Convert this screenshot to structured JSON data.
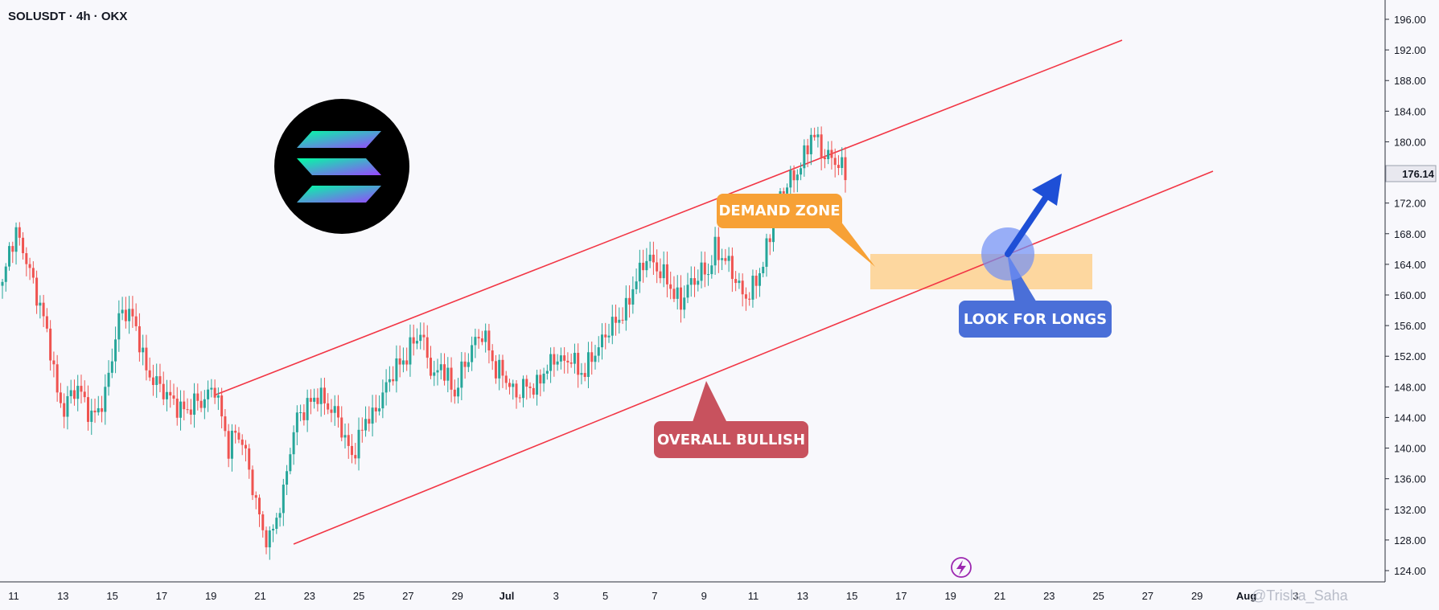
{
  "chart_data": {
    "type": "candlestick",
    "title": "SOLUSDT · 4h · OKX",
    "symbol": "SOLUSDT",
    "interval": "4h",
    "exchange": "OKX",
    "last_price": "176.14",
    "ylim": [
      122.5,
      198
    ],
    "y_ticks": [
      "196.00",
      "192.00",
      "188.00",
      "184.00",
      "180.00",
      "176.00",
      "172.00",
      "168.00",
      "164.00",
      "160.00",
      "156.00",
      "152.00",
      "148.00",
      "144.00",
      "140.00",
      "136.00",
      "132.00",
      "128.00",
      "124.00"
    ],
    "x_ticks": [
      "11",
      "13",
      "15",
      "17",
      "19",
      "21",
      "23",
      "25",
      "27",
      "29",
      "Jul",
      "3",
      "5",
      "7",
      "9",
      "11",
      "13",
      "15",
      "17",
      "19",
      "21",
      "23",
      "25",
      "27",
      "29",
      "Aug",
      "3"
    ],
    "x_tick_bold": [
      "Jul",
      "Aug"
    ],
    "waypoints": [
      [
        0,
        161
      ],
      [
        2,
        166
      ],
      [
        4,
        168
      ],
      [
        6,
        166
      ],
      [
        8,
        163
      ],
      [
        10,
        160
      ],
      [
        12,
        157
      ],
      [
        14,
        153
      ],
      [
        16,
        147
      ],
      [
        18,
        145
      ],
      [
        20,
        147
      ],
      [
        22,
        148
      ],
      [
        24,
        146
      ],
      [
        26,
        144
      ],
      [
        28,
        145
      ],
      [
        30,
        147
      ],
      [
        32,
        152
      ],
      [
        34,
        157
      ],
      [
        36,
        158
      ],
      [
        38,
        157
      ],
      [
        40,
        154
      ],
      [
        42,
        150
      ],
      [
        44,
        149
      ],
      [
        46,
        148
      ],
      [
        48,
        147
      ],
      [
        50,
        146
      ],
      [
        52,
        145
      ],
      [
        54,
        145
      ],
      [
        56,
        146
      ],
      [
        58,
        146
      ],
      [
        60,
        147
      ],
      [
        62,
        148
      ],
      [
        64,
        144
      ],
      [
        66,
        140
      ],
      [
        68,
        142
      ],
      [
        70,
        141
      ],
      [
        72,
        137
      ],
      [
        74,
        133
      ],
      [
        76,
        129
      ],
      [
        78,
        128
      ],
      [
        80,
        131
      ],
      [
        82,
        134
      ],
      [
        84,
        140
      ],
      [
        86,
        144
      ],
      [
        88,
        145
      ],
      [
        90,
        146
      ],
      [
        92,
        147
      ],
      [
        94,
        146
      ],
      [
        96,
        145
      ],
      [
        98,
        144
      ],
      [
        100,
        141
      ],
      [
        102,
        139
      ],
      [
        104,
        141
      ],
      [
        106,
        144
      ],
      [
        108,
        144
      ],
      [
        110,
        146
      ],
      [
        112,
        148
      ],
      [
        114,
        150
      ],
      [
        116,
        151
      ],
      [
        118,
        152
      ],
      [
        120,
        154
      ],
      [
        122,
        155
      ],
      [
        124,
        152
      ],
      [
        126,
        149
      ],
      [
        128,
        151
      ],
      [
        130,
        149
      ],
      [
        132,
        147
      ],
      [
        134,
        150
      ],
      [
        136,
        152
      ],
      [
        138,
        154
      ],
      [
        140,
        155
      ],
      [
        142,
        153
      ],
      [
        144,
        150
      ],
      [
        146,
        150
      ],
      [
        148,
        148
      ],
      [
        150,
        147
      ],
      [
        152,
        148
      ],
      [
        154,
        148
      ],
      [
        156,
        148
      ],
      [
        158,
        150
      ],
      [
        160,
        151
      ],
      [
        162,
        152
      ],
      [
        164,
        151
      ],
      [
        166,
        152
      ],
      [
        168,
        150
      ],
      [
        170,
        150
      ],
      [
        172,
        152
      ],
      [
        174,
        153
      ],
      [
        176,
        155
      ],
      [
        178,
        156
      ],
      [
        180,
        157
      ],
      [
        182,
        158
      ],
      [
        184,
        161
      ],
      [
        186,
        163
      ],
      [
        188,
        165
      ],
      [
        190,
        164
      ],
      [
        192,
        163
      ],
      [
        194,
        162
      ],
      [
        196,
        160
      ],
      [
        198,
        159
      ],
      [
        200,
        161
      ],
      [
        202,
        162
      ],
      [
        204,
        163
      ],
      [
        206,
        163
      ],
      [
        208,
        166
      ],
      [
        210,
        165
      ],
      [
        212,
        164
      ],
      [
        214,
        162
      ],
      [
        216,
        160
      ],
      [
        218,
        160
      ],
      [
        220,
        162
      ],
      [
        222,
        164
      ],
      [
        224,
        168
      ],
      [
        226,
        172
      ],
      [
        228,
        174
      ],
      [
        230,
        175
      ],
      [
        232,
        176
      ],
      [
        234,
        178
      ],
      [
        236,
        181
      ],
      [
        238,
        180
      ],
      [
        240,
        178
      ],
      [
        242,
        178
      ],
      [
        244,
        177
      ],
      [
        246,
        176
      ]
    ]
  },
  "annotations": {
    "demand_zone": "DEMAND ZONE",
    "look_for_longs": "LOOK FOR LONGS",
    "overall_bullish": "OVERALL BULLISH"
  },
  "watermark": "@Trisha_Saha",
  "colors": {
    "up": "#26a69a",
    "down": "#ef5350",
    "channel": "#f23645",
    "demand_label": "#f7a136",
    "demand_zone": "#ffcc80",
    "longs_label": "#4a6fd8",
    "bullish_label": "#c8525e",
    "arrow": "#1e4fd6",
    "logo_bg": "#000000"
  },
  "icons": [
    "solana-logo-icon",
    "lightning-icon",
    "long-arrow-icon"
  ]
}
